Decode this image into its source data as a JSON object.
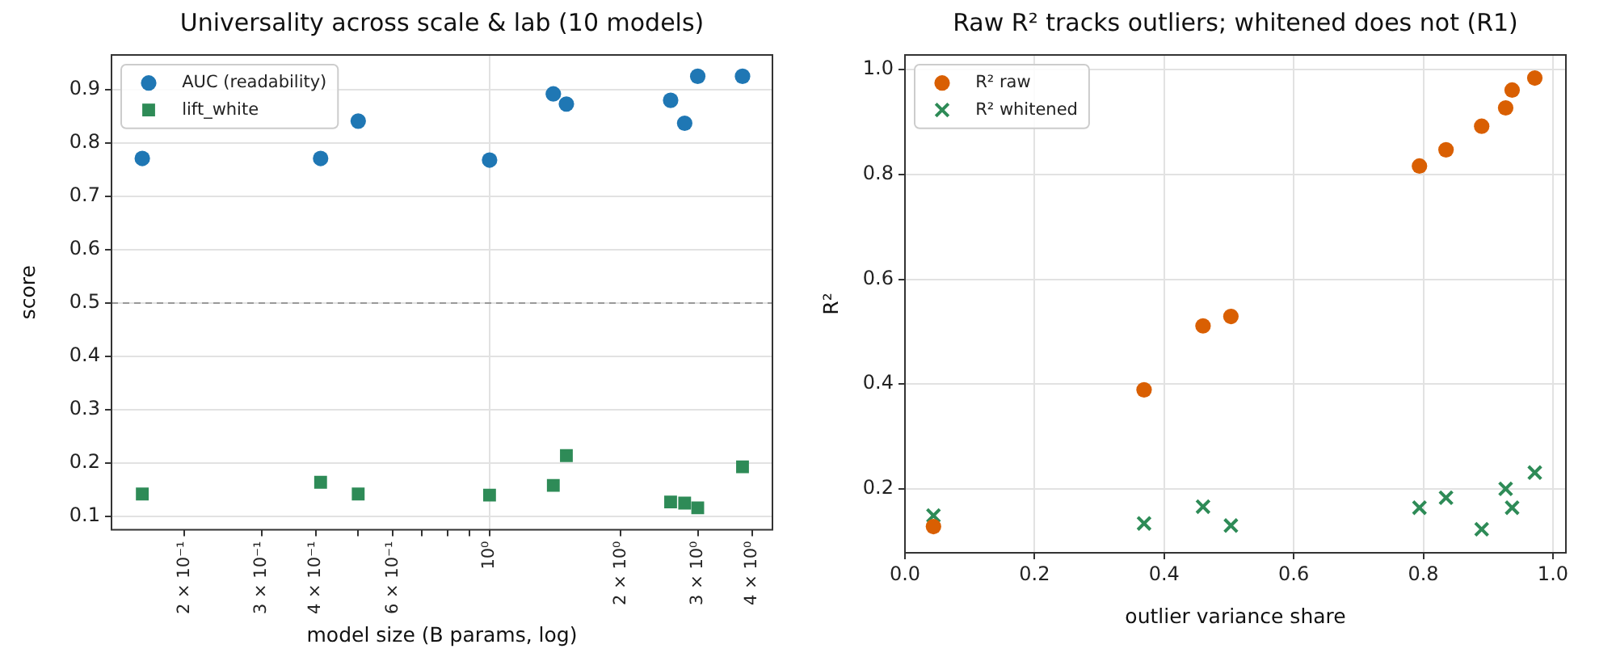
{
  "chart_data": [
    {
      "type": "scatter",
      "title": "Universality across scale & lab (10 models)",
      "xlabel": "model size (B params, log)",
      "ylabel": "score",
      "x": [
        0.16,
        0.41,
        0.5,
        1.0,
        1.4,
        1.5,
        2.6,
        2.8,
        3.0,
        3.8
      ],
      "series": [
        {
          "name": "AUC (readability)",
          "color": "#1f77b4",
          "marker": "circle",
          "values": [
            0.771,
            0.771,
            0.841,
            0.768,
            0.892,
            0.873,
            0.88,
            0.837,
            0.925,
            0.925
          ]
        },
        {
          "name": "lift_white",
          "color": "#2e8b57",
          "marker": "square",
          "values": [
            0.142,
            0.164,
            0.142,
            0.14,
            0.158,
            0.214,
            0.127,
            0.125,
            0.116,
            0.193
          ]
        }
      ],
      "log": "x",
      "xlim": [
        0.136,
        4.45
      ],
      "xticks": [
        {
          "value": 0.2,
          "label": "2 × 10⁻¹"
        },
        {
          "value": 0.3,
          "label": "3 × 10⁻¹"
        },
        {
          "value": 0.4,
          "label": "4 × 10⁻¹"
        },
        {
          "value": 0.5,
          "label": null
        },
        {
          "value": 0.6,
          "label": "6 × 10⁻¹"
        },
        {
          "value": 0.7,
          "label": null
        },
        {
          "value": 0.8,
          "label": null
        },
        {
          "value": 0.9,
          "label": null
        },
        {
          "value": 1,
          "label": "10⁰"
        },
        {
          "value": 2,
          "label": "2 × 10⁰"
        },
        {
          "value": 3,
          "label": "3 × 10⁰"
        },
        {
          "value": 4,
          "label": "4 × 10⁰"
        }
      ],
      "ylim": [
        0.075,
        0.965
      ],
      "yticks": [
        0.1,
        0.2,
        0.3,
        0.4,
        0.5,
        0.6,
        0.7,
        0.8,
        0.9
      ],
      "grid": true,
      "legend": "top left",
      "ref_lines": [
        {
          "axis": "y",
          "value": 0.5,
          "color": "#999999",
          "line_style": "dashed"
        }
      ]
    },
    {
      "type": "scatter",
      "title": "Raw R² tracks outliers; whitened does not (R1)",
      "xlabel": "outlier variance share",
      "ylabel": "R²",
      "x": [
        0.044,
        0.369,
        0.46,
        0.503,
        0.794,
        0.835,
        0.89,
        0.927,
        0.937,
        0.972
      ],
      "series": [
        {
          "name": "R² raw",
          "color": "#d95f02",
          "marker": "circle",
          "values": [
            0.128,
            0.389,
            0.511,
            0.529,
            0.816,
            0.847,
            0.892,
            0.927,
            0.961,
            0.984
          ]
        },
        {
          "name": "R² whitened",
          "color": "#2e8b57",
          "marker": "cross",
          "values": [
            0.149,
            0.134,
            0.166,
            0.13,
            0.164,
            0.183,
            0.123,
            0.2,
            0.164,
            0.231
          ]
        }
      ],
      "xlim": [
        0,
        1.02
      ],
      "xticks": [
        {
          "value": 0,
          "label": "0.0"
        },
        0.2,
        0.4,
        0.6,
        0.8,
        {
          "value": 1,
          "label": "1.0"
        }
      ],
      "ylim": [
        0.078,
        1.028
      ],
      "yticks": [
        0.2,
        0.4,
        0.6,
        0.8,
        {
          "value": 1,
          "label": "1.0"
        }
      ],
      "grid": true,
      "legend": "top left"
    }
  ]
}
